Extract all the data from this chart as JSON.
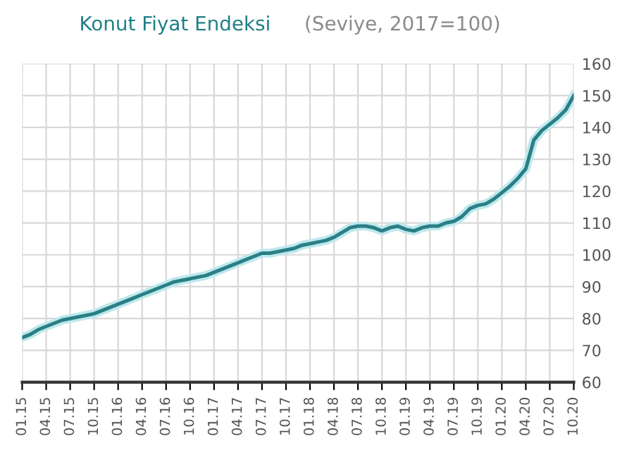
{
  "chart_data": {
    "type": "line",
    "title": "Konut Fiyat Endeksi",
    "subtitle": "(Seviye, 2017=100)",
    "categories": [
      "01.15",
      null,
      null,
      "04.15",
      null,
      null,
      "07.15",
      null,
      null,
      "10.15",
      null,
      null,
      "01.16",
      null,
      null,
      "04.16",
      null,
      null,
      "07.16",
      null,
      null,
      "10.16",
      null,
      null,
      "01.17",
      null,
      null,
      "04.17",
      null,
      null,
      "07.17",
      null,
      null,
      "10.17",
      null,
      null,
      "01.18",
      null,
      null,
      "04.18",
      null,
      null,
      "07.18",
      null,
      null,
      "10.18",
      null,
      null,
      "01.19",
      null,
      null,
      "04.19",
      null,
      null,
      "07.19",
      null,
      null,
      "10.19",
      null,
      null,
      "01.20",
      null,
      null,
      "04.20",
      null,
      null,
      "07.20",
      null,
      null,
      "10.20"
    ],
    "series": [
      {
        "color": "#2a7f86",
        "values": [
          74,
          75,
          76.5,
          77.5,
          78.5,
          79.5,
          80,
          80.5,
          81,
          81.5,
          82.5,
          83.5,
          84.5,
          85.5,
          86.5,
          87.5,
          88.5,
          89.5,
          90.5,
          91.5,
          92,
          92.5,
          93,
          93.5,
          94.5,
          95.5,
          96.5,
          97.5,
          98.5,
          99.5,
          100.5,
          100.5,
          101,
          101.5,
          102,
          103,
          103.5,
          104,
          104.5,
          105.5,
          107,
          108.5,
          109,
          109,
          108.5,
          107.5,
          108.5,
          109,
          108,
          107.5,
          108.5,
          109,
          109,
          110,
          110.5,
          112,
          114.5,
          115.5,
          116,
          117.5,
          119.5,
          121.5,
          124,
          127,
          136,
          139,
          141,
          143,
          145.5,
          150
        ]
      }
    ],
    "ylim": [
      60,
      160
    ],
    "yticks": [
      60,
      70,
      80,
      90,
      100,
      110,
      120,
      130,
      140,
      150,
      160
    ],
    "grid": true,
    "legend": false,
    "marker": "none",
    "line_style": "solid"
  }
}
